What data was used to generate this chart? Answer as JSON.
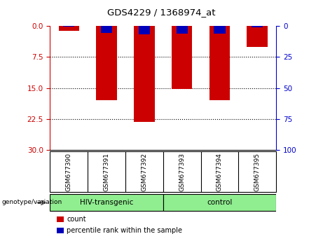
{
  "title": "GDS4229 / 1368974_at",
  "samples": [
    "GSM677390",
    "GSM677391",
    "GSM677392",
    "GSM677393",
    "GSM677394",
    "GSM677395"
  ],
  "counts": [
    1.1,
    18.0,
    23.2,
    15.2,
    18.0,
    5.0
  ],
  "percentiles": [
    0.5,
    5.5,
    6.5,
    6.0,
    6.0,
    1.0
  ],
  "groups": [
    {
      "label": "HIV-transgenic",
      "span": [
        0,
        2
      ],
      "color": "#90EE90"
    },
    {
      "label": "control",
      "span": [
        3,
        5
      ],
      "color": "#90EE90"
    }
  ],
  "bar_color": "#CC0000",
  "percentile_color": "#0000BB",
  "left_yticks": [
    0,
    7.5,
    15,
    22.5,
    30
  ],
  "right_yticks": [
    0,
    25,
    50,
    75,
    100
  ],
  "left_ylim": [
    0,
    30
  ],
  "right_ylim": [
    0,
    100
  ],
  "left_ycolor": "#CC0000",
  "right_ycolor": "#0000CC",
  "plot_bg": "#FFFFFF",
  "sample_box_bg": "#CCCCCC",
  "group_label_text": "genotype/variation",
  "legend_count_label": "count",
  "legend_percentile_label": "percentile rank within the sample",
  "bar_width": 0.55
}
